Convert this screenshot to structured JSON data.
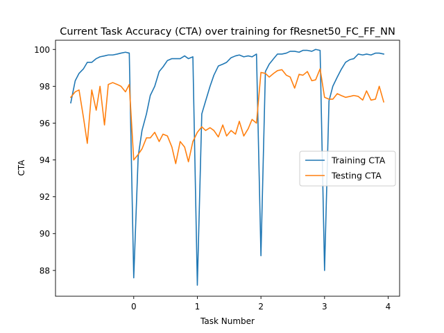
{
  "chart_data": {
    "type": "line",
    "title": "Current Task Accuracy (CTA) over training for fResnet50_FC_FF_NN",
    "xlabel": "Task Number",
    "ylabel": "CTA",
    "xlim": [
      -1.23,
      4.18
    ],
    "ylim": [
      86.6,
      100.5
    ],
    "xticks": [
      0,
      1,
      2,
      3,
      4
    ],
    "yticks": [
      88,
      90,
      92,
      94,
      96,
      98,
      100
    ],
    "grid": false,
    "legend_position": "center-right",
    "series": [
      {
        "name": "Training CTA",
        "color": "#1f77b4",
        "x": [
          -0.99,
          -0.92,
          -0.86,
          -0.79,
          -0.73,
          -0.66,
          -0.59,
          -0.53,
          -0.46,
          -0.4,
          -0.33,
          -0.26,
          -0.2,
          -0.13,
          -0.07,
          0.0,
          0.07,
          0.13,
          0.2,
          0.26,
          0.33,
          0.4,
          0.46,
          0.53,
          0.6,
          0.66,
          0.73,
          0.8,
          0.86,
          0.93,
          1.0,
          1.07,
          1.13,
          1.2,
          1.26,
          1.33,
          1.4,
          1.46,
          1.53,
          1.6,
          1.66,
          1.73,
          1.8,
          1.86,
          1.93,
          2.0,
          2.07,
          2.13,
          2.2,
          2.26,
          2.33,
          2.4,
          2.46,
          2.53,
          2.6,
          2.66,
          2.73,
          2.8,
          2.86,
          2.93,
          3.0,
          3.07,
          3.13,
          3.2,
          3.26,
          3.33,
          3.4,
          3.46,
          3.53,
          3.6,
          3.66,
          3.73,
          3.8,
          3.86,
          3.93
        ],
        "y": [
          97.1,
          98.3,
          98.7,
          98.95,
          99.3,
          99.3,
          99.5,
          99.6,
          99.65,
          99.7,
          99.7,
          99.75,
          99.8,
          99.85,
          99.8,
          87.6,
          94.2,
          95.6,
          96.5,
          97.5,
          98.0,
          98.8,
          99.05,
          99.4,
          99.5,
          99.5,
          99.5,
          99.65,
          99.5,
          99.6,
          87.2,
          96.5,
          97.2,
          98.0,
          98.6,
          99.1,
          99.2,
          99.3,
          99.55,
          99.65,
          99.7,
          99.6,
          99.65,
          99.6,
          99.75,
          88.8,
          98.8,
          99.2,
          99.5,
          99.75,
          99.75,
          99.8,
          99.9,
          99.9,
          99.85,
          99.95,
          99.95,
          99.9,
          100.0,
          99.95,
          88.0,
          97.2,
          98.0,
          98.5,
          98.9,
          99.3,
          99.45,
          99.5,
          99.75,
          99.7,
          99.75,
          99.7,
          99.8,
          99.8,
          99.75
        ]
      },
      {
        "name": "Testing CTA",
        "color": "#ff7f0e",
        "x": [
          -0.99,
          -0.92,
          -0.86,
          -0.79,
          -0.73,
          -0.66,
          -0.59,
          -0.53,
          -0.46,
          -0.4,
          -0.33,
          -0.26,
          -0.2,
          -0.13,
          -0.07,
          0.0,
          0.07,
          0.13,
          0.2,
          0.26,
          0.33,
          0.4,
          0.46,
          0.53,
          0.6,
          0.66,
          0.73,
          0.8,
          0.86,
          0.93,
          1.0,
          1.07,
          1.13,
          1.2,
          1.26,
          1.33,
          1.4,
          1.46,
          1.53,
          1.6,
          1.66,
          1.73,
          1.8,
          1.86,
          1.93,
          2.0,
          2.07,
          2.13,
          2.2,
          2.26,
          2.33,
          2.4,
          2.46,
          2.53,
          2.6,
          2.66,
          2.73,
          2.8,
          2.86,
          2.93,
          3.0,
          3.07,
          3.13,
          3.2,
          3.26,
          3.33,
          3.4,
          3.46,
          3.53,
          3.6,
          3.66,
          3.73,
          3.8,
          3.86,
          3.93
        ],
        "y": [
          97.4,
          97.7,
          97.8,
          96.3,
          94.9,
          97.8,
          96.7,
          98.0,
          95.9,
          98.1,
          98.2,
          98.1,
          98.0,
          97.7,
          98.1,
          94.0,
          94.3,
          94.6,
          95.2,
          95.2,
          95.5,
          95.0,
          95.4,
          95.3,
          94.7,
          93.8,
          95.0,
          94.7,
          93.9,
          95.0,
          95.5,
          95.8,
          95.6,
          95.75,
          95.6,
          95.25,
          95.9,
          95.3,
          95.6,
          95.4,
          96.1,
          95.3,
          95.7,
          96.2,
          96.0,
          98.75,
          98.7,
          98.5,
          98.7,
          98.85,
          98.9,
          98.6,
          98.5,
          97.9,
          98.65,
          98.6,
          98.8,
          98.3,
          98.35,
          98.95,
          97.4,
          97.3,
          97.3,
          97.6,
          97.5,
          97.4,
          97.45,
          97.5,
          97.45,
          97.25,
          97.75,
          97.25,
          97.3,
          98.0,
          97.15
        ]
      }
    ]
  }
}
